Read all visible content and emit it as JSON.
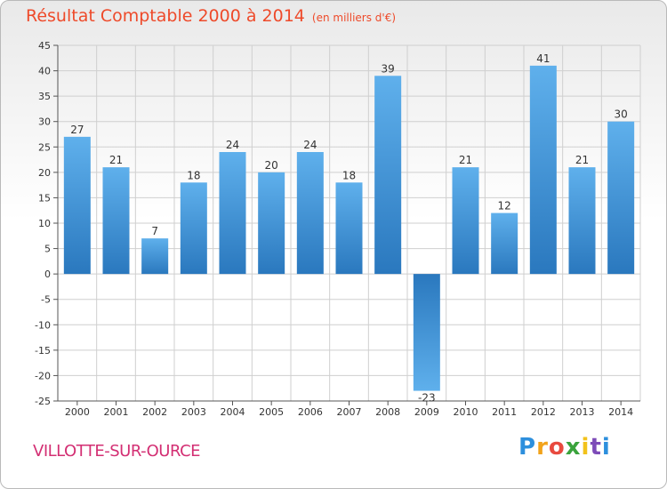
{
  "header": {
    "title": "Résultat Comptable 2000 à 2014",
    "unit": "(en milliers d'€)"
  },
  "footer": {
    "commune": "VILLOTTE-SUR-OURCE",
    "logo_letters": [
      "P",
      "r",
      "o",
      "x",
      "i",
      "t",
      "i"
    ],
    "logo_colors": [
      "#2d8fdd",
      "#f2a31b",
      "#e84a3f",
      "#3aa33c",
      "#f2c21b",
      "#7d4bb8",
      "#2d8fdd"
    ]
  },
  "colors": {
    "bar_top": "#5fb0ec",
    "bar_bottom": "#2a78be",
    "grid": "#cfcfcf",
    "title": "#ee4a2a",
    "commune": "#d32f73"
  },
  "chart_data": {
    "type": "bar",
    "title": "Résultat Comptable 2000 à 2014",
    "ylabel": "",
    "xlabel": "",
    "categories": [
      "2000",
      "2001",
      "2002",
      "2003",
      "2004",
      "2005",
      "2006",
      "2007",
      "2008",
      "2009",
      "2010",
      "2011",
      "2012",
      "2013",
      "2014"
    ],
    "values": [
      27,
      21,
      7,
      18,
      24,
      20,
      24,
      18,
      39,
      -23,
      21,
      12,
      41,
      21,
      30
    ],
    "ylim": [
      -25,
      45
    ],
    "yticks": [
      "45",
      "40",
      "35",
      "30",
      "25",
      "20",
      "15",
      "10",
      "5",
      "0",
      "-5",
      "-10",
      "-15",
      "-20",
      "-25"
    ],
    "grid": true
  }
}
